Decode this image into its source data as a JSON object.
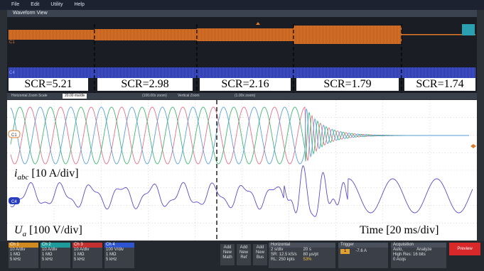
{
  "menu": [
    "File",
    "Edit",
    "Utility",
    "Help"
  ],
  "panel_title": "Waveform View",
  "overview_labels": {
    "current": "C1",
    "voltage": "C4"
  },
  "scr_labels": [
    "SCR=5.21",
    "SCR=2.98",
    "SCR=2.16",
    "SCR=1.79",
    "SCR=1.74"
  ],
  "zoom_bar": {
    "horizontal_label": "Horizontal Zoom Scale",
    "horizontal_value": "20.00 ms/div",
    "horizontal_zoom": "(100.00x zoom)",
    "vertical_label": "Vertical Zoom",
    "vertical_zoom": "(1.00x zoom)"
  },
  "channel_markers": {
    "current": "C1",
    "voltage": "C4"
  },
  "annotations": {
    "current": {
      "symbol": "i",
      "subscript": "abc",
      "scale": "[10 A/div]"
    },
    "voltage": {
      "symbol": "U",
      "subscript": "a",
      "scale": "[100 V/div]"
    },
    "time": "Time [20 ms/div]"
  },
  "channels": [
    {
      "name": "Ch 1",
      "scale": "10 A/div",
      "impedance": "1 MΩ",
      "bandwidth": "5 kHz"
    },
    {
      "name": "Ch 2",
      "scale": "10 A/div",
      "impedance": "1 MΩ",
      "bandwidth": "5 kHz"
    },
    {
      "name": "Ch 3",
      "scale": "10 A/div",
      "impedance": "1 MΩ",
      "bandwidth": "5 kHz"
    },
    {
      "name": "Ch 4",
      "scale": "100 V/div",
      "impedance": "1 MΩ",
      "bandwidth": "5 kHz"
    }
  ],
  "add_buttons": [
    [
      "Add",
      "New",
      "Math"
    ],
    [
      "Add",
      "New",
      "Ref"
    ],
    [
      "Add",
      "New",
      "Bus"
    ]
  ],
  "horizontal": {
    "title": "Horizontal",
    "rows": [
      [
        "2 s/div",
        "20 s"
      ],
      [
        "SR: 12.5 kS/s",
        "80 µs/pt"
      ],
      [
        "RL: 250 kpts",
        "53%"
      ]
    ]
  },
  "trigger": {
    "title": "Trigger",
    "source": "1",
    "level": "-7.6 A"
  },
  "acquisition": {
    "title": "Acquisition",
    "rows": [
      [
        "Auto,",
        "Analyze"
      ],
      [
        "High Res: 16 bits"
      ],
      [
        "0 Acqs"
      ]
    ]
  },
  "preview": "Preview"
}
